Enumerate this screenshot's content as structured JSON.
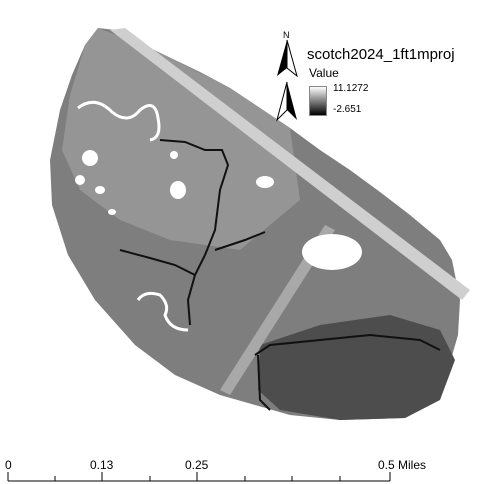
{
  "legend": {
    "title": "scotch2024_1ft1mproj",
    "subtitle": "Value",
    "high": "11.1272",
    "low": "-2.651"
  },
  "north_arrow": {
    "label": "N"
  },
  "scale_bar": {
    "ticks": [
      "0",
      "0.13",
      "0.25",
      "0.5 Miles"
    ]
  },
  "colors": {
    "ramp_high": "#ffffff",
    "ramp_low": "#000000"
  },
  "icons": [
    "north-arrow-icon"
  ]
}
